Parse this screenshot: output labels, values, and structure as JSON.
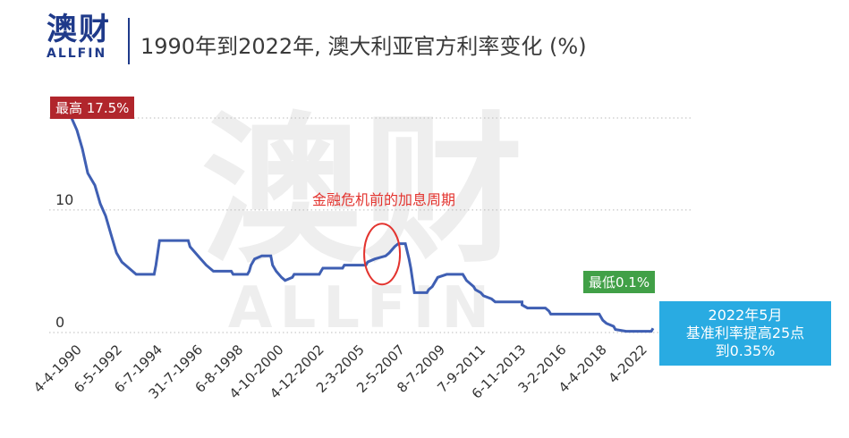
{
  "logo": {
    "cn": "澳财",
    "en": "ALLFIN"
  },
  "title": "1990年到2022年, 澳大利亚官方利率变化 (%)",
  "watermark": {
    "cn": "澳财",
    "en": "ALLFIN"
  },
  "badges": {
    "max": "最高 17.5%",
    "min": "最低0.1%",
    "now_line1": "2022年5月",
    "now_line2": "基准利率提高25点",
    "now_line3": "到0.35%"
  },
  "annotation": "金融危机前的加息周期",
  "colors": {
    "line": "#3f5fb3",
    "brand": "#1f3a8a",
    "max_badge": "#b1262c",
    "min_badge": "#41a047",
    "now_badge": "#29abe2",
    "annotation": "#e3342f"
  },
  "chart_data": {
    "type": "line",
    "title": "1990年到2022年, 澳大利亚官方利率变化 (%)",
    "xlabel": "",
    "ylabel": "",
    "ylim": [
      0,
      17.5
    ],
    "yticks": [
      0,
      10
    ],
    "grid": true,
    "xtick_labels": [
      "4-4-1990",
      "6-5-1992",
      "6-7-1994",
      "31-7-1996",
      "6-8-1998",
      "4-10-2000",
      "4-12-2002",
      "2-3-2005",
      "2-5-2007",
      "8-7-2009",
      "7-9-2011",
      "6-11-2013",
      "3-2-2016",
      "4-4-2018",
      "4-2022"
    ],
    "series": [
      {
        "values": [
          {
            "x": 1990.0,
            "y": 17.5
          },
          {
            "x": 1990.3,
            "y": 16.5
          },
          {
            "x": 1990.6,
            "y": 15.0
          },
          {
            "x": 1990.9,
            "y": 13.0
          },
          {
            "x": 1991.3,
            "y": 12.0
          },
          {
            "x": 1991.6,
            "y": 10.5
          },
          {
            "x": 1991.9,
            "y": 9.5
          },
          {
            "x": 1992.2,
            "y": 8.0
          },
          {
            "x": 1992.5,
            "y": 6.5
          },
          {
            "x": 1992.8,
            "y": 5.75
          },
          {
            "x": 1993.2,
            "y": 5.25
          },
          {
            "x": 1993.6,
            "y": 4.75
          },
          {
            "x": 1994.6,
            "y": 4.75
          },
          {
            "x": 1994.7,
            "y": 5.5
          },
          {
            "x": 1994.8,
            "y": 6.5
          },
          {
            "x": 1994.9,
            "y": 7.5
          },
          {
            "x": 1996.5,
            "y": 7.5
          },
          {
            "x": 1996.6,
            "y": 7.0
          },
          {
            "x": 1996.9,
            "y": 6.5
          },
          {
            "x": 1997.2,
            "y": 6.0
          },
          {
            "x": 1997.5,
            "y": 5.5
          },
          {
            "x": 1997.9,
            "y": 5.0
          },
          {
            "x": 1998.9,
            "y": 5.0
          },
          {
            "x": 1999.0,
            "y": 4.75
          },
          {
            "x": 1999.8,
            "y": 4.75
          },
          {
            "x": 1999.9,
            "y": 5.0
          },
          {
            "x": 2000.0,
            "y": 5.5
          },
          {
            "x": 2000.2,
            "y": 6.0
          },
          {
            "x": 2000.6,
            "y": 6.25
          },
          {
            "x": 2001.1,
            "y": 6.25
          },
          {
            "x": 2001.2,
            "y": 5.5
          },
          {
            "x": 2001.4,
            "y": 5.0
          },
          {
            "x": 2001.7,
            "y": 4.5
          },
          {
            "x": 2001.9,
            "y": 4.25
          },
          {
            "x": 2002.3,
            "y": 4.5
          },
          {
            "x": 2002.4,
            "y": 4.75
          },
          {
            "x": 2003.8,
            "y": 4.75
          },
          {
            "x": 2003.9,
            "y": 5.0
          },
          {
            "x": 2004.0,
            "y": 5.25
          },
          {
            "x": 2005.1,
            "y": 5.25
          },
          {
            "x": 2005.2,
            "y": 5.5
          },
          {
            "x": 2006.4,
            "y": 5.5
          },
          {
            "x": 2006.5,
            "y": 5.75
          },
          {
            "x": 2006.9,
            "y": 6.0
          },
          {
            "x": 2007.5,
            "y": 6.25
          },
          {
            "x": 2007.7,
            "y": 6.5
          },
          {
            "x": 2008.0,
            "y": 7.0
          },
          {
            "x": 2008.2,
            "y": 7.25
          },
          {
            "x": 2008.6,
            "y": 7.25
          },
          {
            "x": 2008.8,
            "y": 6.0
          },
          {
            "x": 2008.9,
            "y": 5.25
          },
          {
            "x": 2009.0,
            "y": 4.25
          },
          {
            "x": 2009.1,
            "y": 3.25
          },
          {
            "x": 2009.8,
            "y": 3.25
          },
          {
            "x": 2009.9,
            "y": 3.5
          },
          {
            "x": 2010.1,
            "y": 3.75
          },
          {
            "x": 2010.3,
            "y": 4.25
          },
          {
            "x": 2010.4,
            "y": 4.5
          },
          {
            "x": 2010.9,
            "y": 4.75
          },
          {
            "x": 2011.8,
            "y": 4.75
          },
          {
            "x": 2011.9,
            "y": 4.5
          },
          {
            "x": 2012.0,
            "y": 4.25
          },
          {
            "x": 2012.4,
            "y": 3.75
          },
          {
            "x": 2012.5,
            "y": 3.5
          },
          {
            "x": 2012.8,
            "y": 3.25
          },
          {
            "x": 2012.95,
            "y": 3.0
          },
          {
            "x": 2013.4,
            "y": 2.75
          },
          {
            "x": 2013.6,
            "y": 2.5
          },
          {
            "x": 2015.1,
            "y": 2.5
          },
          {
            "x": 2015.1,
            "y": 2.25
          },
          {
            "x": 2015.4,
            "y": 2.0
          },
          {
            "x": 2016.4,
            "y": 2.0
          },
          {
            "x": 2016.6,
            "y": 1.75
          },
          {
            "x": 2016.7,
            "y": 1.5
          },
          {
            "x": 2019.4,
            "y": 1.5
          },
          {
            "x": 2019.5,
            "y": 1.25
          },
          {
            "x": 2019.6,
            "y": 1.0
          },
          {
            "x": 2019.8,
            "y": 0.75
          },
          {
            "x": 2020.2,
            "y": 0.5
          },
          {
            "x": 2020.3,
            "y": 0.25
          },
          {
            "x": 2020.9,
            "y": 0.1
          },
          {
            "x": 2022.3,
            "y": 0.1
          },
          {
            "x": 2022.4,
            "y": 0.35
          }
        ]
      }
    ]
  }
}
